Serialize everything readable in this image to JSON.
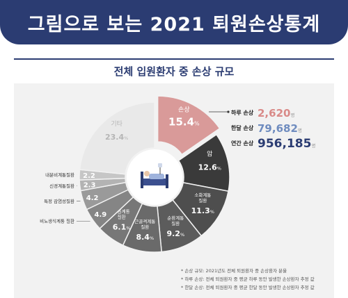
{
  "header": {
    "title": "그림으로 보는 2021 퇴원손상통계"
  },
  "section": {
    "subtitle": "전체 입원환자 중 손상 규모"
  },
  "chart_data": {
    "type": "pie",
    "unit": "%",
    "slices": [
      {
        "label": "손상",
        "value": 15.4,
        "color": "#d99a99"
      },
      {
        "label": "암",
        "value": 12.6,
        "color": "#3a3a3a"
      },
      {
        "label": "소화계통\n질환",
        "value": 11.3,
        "color": "#4e4e4e"
      },
      {
        "label": "순환계통\n질환",
        "value": 9.2,
        "color": "#5c5c5c"
      },
      {
        "label": "근골격계통\n질환",
        "value": 8.4,
        "color": "#6a6a6a"
      },
      {
        "label": "호흡계통\n질환",
        "value": 6.1,
        "color": "#777777"
      },
      {
        "label": "비뇨생식계통 질환",
        "value": 4.9,
        "color": "#858585"
      },
      {
        "label": "특정 감염성질환",
        "value": 4.2,
        "color": "#9a9a9a"
      },
      {
        "label": "신경계통질환",
        "value": 2.3,
        "color": "#b3b3b3"
      },
      {
        "label": "내분비계통질환",
        "value": 2.2,
        "color": "#c6c6c6"
      },
      {
        "label": "기타",
        "value": 23.4,
        "color": "#e9e9e9"
      }
    ],
    "stats": [
      {
        "label": "하루 손상",
        "value": "2,620",
        "unit": "명",
        "color": "#d98a88"
      },
      {
        "label": "한달 손상",
        "value": "79,682",
        "unit": "명",
        "color": "#6f8cbf"
      },
      {
        "label": "연간 손상",
        "value": "956,185",
        "unit": "명",
        "color": "#2b3c72"
      }
    ]
  },
  "notes": [
    "* 손상 규모: 2021년도 전체 퇴원환자 중 손상환자 분율",
    "* 하루 손상: 전체 퇴원환자 중 평균 하루 동안 발생한 손상환자 추정 값",
    "* 한달 손상: 전체 퇴원환자 중 평균 한달 동안 발생한 손상환자 추정 값"
  ],
  "icons": {
    "center": "hospital-bed-patient-icon"
  }
}
